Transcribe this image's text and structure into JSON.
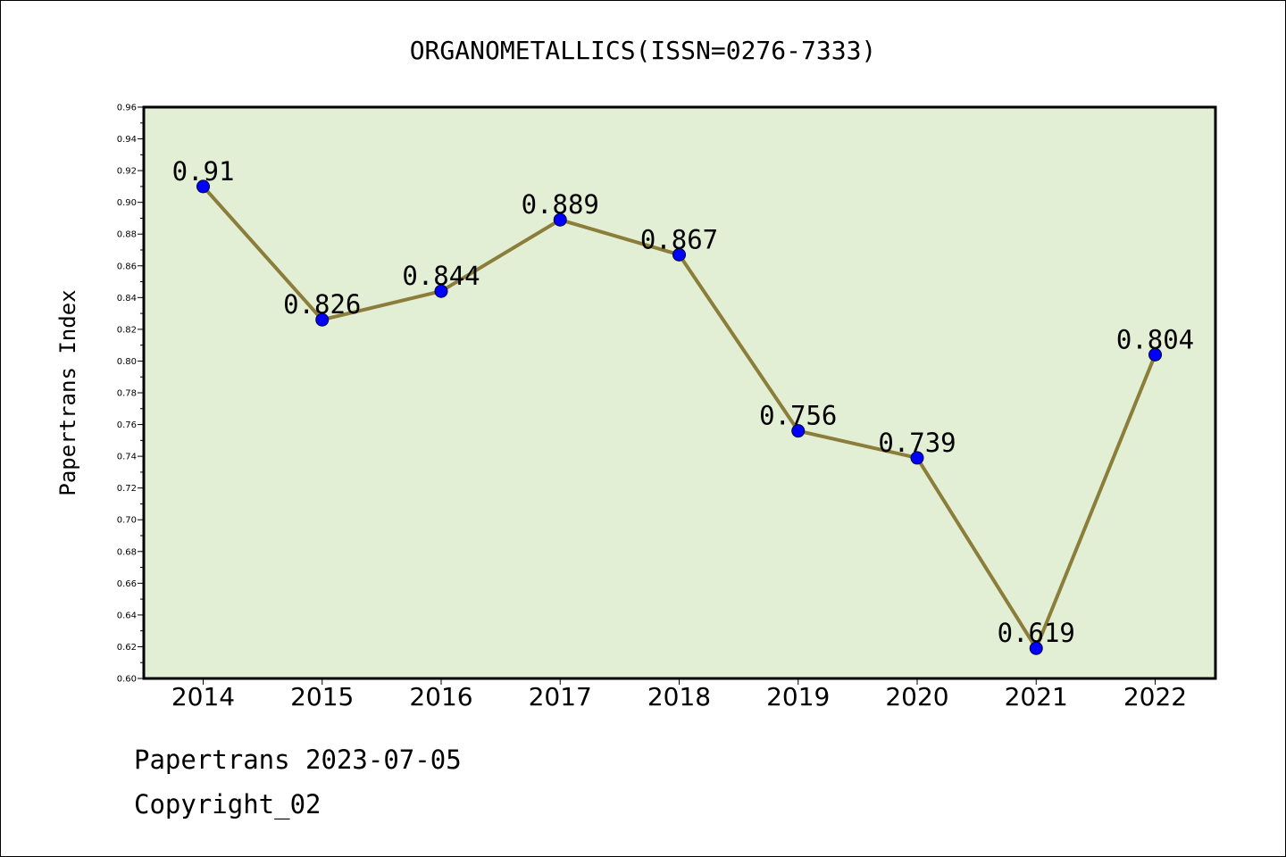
{
  "chart_data": {
    "type": "line",
    "title": "ORGANOMETALLICS(ISSN=0276-7333)",
    "xlabel": "",
    "ylabel": "Papertrans Index",
    "categories": [
      "2014",
      "2015",
      "2016",
      "2017",
      "2018",
      "2019",
      "2020",
      "2021",
      "2022"
    ],
    "series": [
      {
        "values": [
          0.91,
          0.826,
          0.844,
          0.889,
          0.867,
          0.756,
          0.739,
          0.619,
          0.804
        ],
        "labels": [
          "0.91",
          "0.826",
          "0.844",
          "0.889",
          "0.867",
          "0.756",
          "0.739",
          "0.619",
          "0.804"
        ]
      }
    ],
    "ylim": [
      0.6,
      0.96
    ],
    "yticks": [
      "0.60",
      "0.62",
      "0.64",
      "0.66",
      "0.68",
      "0.70",
      "0.72",
      "0.74",
      "0.76",
      "0.78",
      "0.80",
      "0.82",
      "0.84",
      "0.86",
      "0.88",
      "0.90",
      "0.92",
      "0.94",
      "0.96"
    ],
    "grid": false,
    "colors": {
      "plot_background": "#e2efd5",
      "line": "#8b7d3a",
      "marker": "#0000ff",
      "axes": "#000000"
    }
  },
  "footer": {
    "line1": "Papertrans 2023-07-05",
    "line2": "Copyright_02"
  }
}
